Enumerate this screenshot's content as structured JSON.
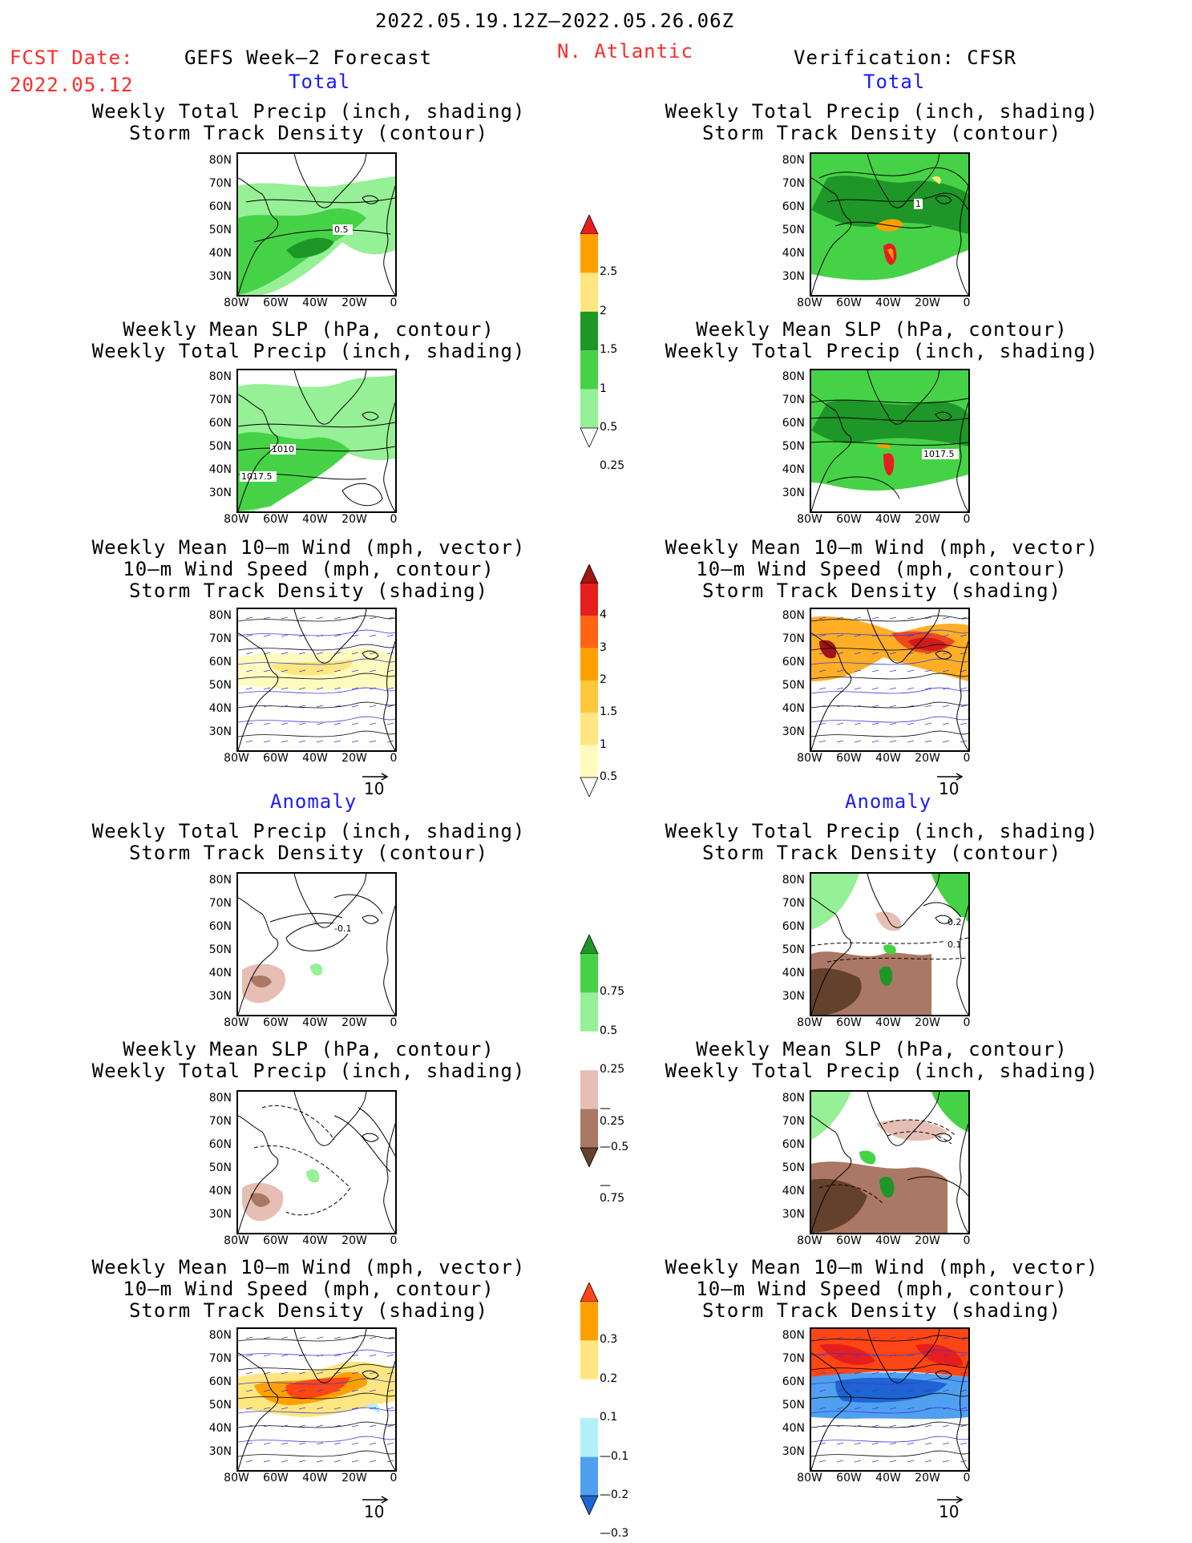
{
  "header": {
    "date_range": "2022.05.19.12Z—2022.05.26.06Z",
    "fcst_date_label": "FCST Date:",
    "fcst_date_value": "2022.05.12",
    "forecast_title": "GEFS Week—2 Forecast",
    "region": "N. Atlantic",
    "verification": "Verification: CFSR"
  },
  "sections": {
    "total": "Total",
    "anomaly": "Anomaly"
  },
  "panels": [
    {
      "line1": "Weekly Total Precip (inch, shading)",
      "line2": "Storm Track Density (contour)",
      "line3": ""
    },
    {
      "line1": "Weekly Mean SLP (hPa, contour)",
      "line2": "Weekly Total Precip (inch, shading)",
      "line3": ""
    },
    {
      "line1": "Weekly Mean 10—m Wind (mph, vector)",
      "line2": "10—m Wind Speed (mph, contour)",
      "line3": "Storm Track Density (shading)"
    }
  ],
  "axes": {
    "lat_labels": [
      "80N",
      "70N",
      "60N",
      "50N",
      "40N",
      "30N"
    ],
    "lon_labels": [
      "80W",
      "60W",
      "40W",
      "20W",
      "0"
    ]
  },
  "contour_labels": {
    "fc_total_precip": "0.5",
    "obs_total_precip": "1",
    "fc_slp_a": "1010",
    "fc_slp_b": "1017.5",
    "obs_slp": "1017.5",
    "fc_anom_precip": "-0.1",
    "obs_anom_precip_a": "0.2",
    "obs_anom_precip_b": "0.1"
  },
  "vector_reference": "10",
  "colorbars": {
    "total_precip": {
      "labels": [
        "2.5",
        "2",
        "1.5",
        "1",
        "0.5",
        "0.25"
      ],
      "colors": [
        "#e61e1e",
        "#ffa000",
        "#ffe680",
        "#1e9628",
        "#46d246",
        "#96f096",
        "#ffffff"
      ]
    },
    "total_storm": {
      "labels": [
        "4",
        "3",
        "2",
        "1.5",
        "1",
        "0.5"
      ],
      "colors": [
        "#a01414",
        "#e61e1e",
        "#ff6414",
        "#ffa000",
        "#ffc83c",
        "#ffe680",
        "#fffabe",
        "#ffffff"
      ]
    },
    "anom_precip": {
      "labels": [
        "0.75",
        "0.5",
        "0.25",
        "—0.25",
        "—0.5",
        "—0.75"
      ],
      "colors": [
        "#1e9628",
        "#46d246",
        "#96f096",
        "#ffffff",
        "#e6beb4",
        "#aa7864",
        "#64412d"
      ]
    },
    "anom_storm": {
      "labels": [
        "0.3",
        "0.2",
        "0.1",
        "—0.1",
        "—0.2",
        "—0.3"
      ],
      "colors": [
        "#ff4614",
        "#ffa000",
        "#ffe680",
        "#ffffff",
        "#b4f0fa",
        "#50a0f0",
        "#1e64d2"
      ]
    }
  }
}
